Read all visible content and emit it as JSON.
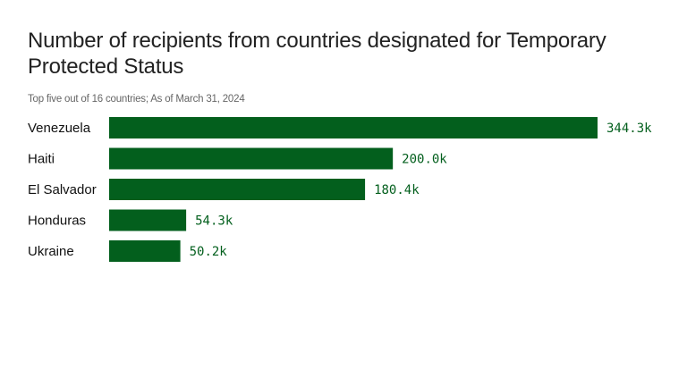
{
  "chart_data": {
    "type": "bar",
    "orientation": "horizontal",
    "title": "Number of recipients from countries designated for Temporary Protected Status",
    "subtitle": "Top five out of 16 countries; As of March 31, 2024",
    "categories": [
      "Venezuela",
      "Haiti",
      "El Salvador",
      "Honduras",
      "Ukraine"
    ],
    "values": [
      344.3,
      200.0,
      180.4,
      54.3,
      50.2
    ],
    "value_labels": [
      "344.3k",
      "200.0k",
      "180.4k",
      "54.3k",
      "50.2k"
    ],
    "unit": "thousands",
    "xlim": [
      0,
      344.3
    ],
    "grid": false,
    "bar_color": "#035f1d"
  }
}
